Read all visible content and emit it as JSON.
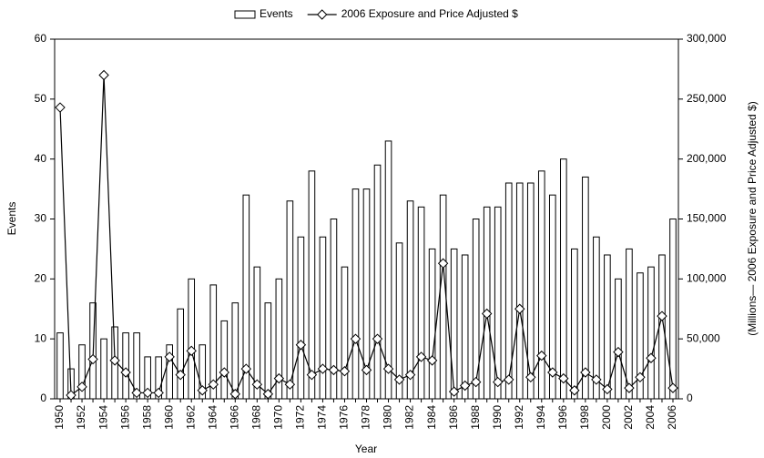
{
  "chart_data": {
    "type": "bar_line",
    "xlabel": "Year",
    "ylabel": "Events",
    "y2label": "(Millions— 2006 Exposure and Price Adjusted $)",
    "categories": [
      "1950",
      null,
      "1952",
      null,
      "1954",
      null,
      "1956",
      null,
      "1958",
      null,
      "1960",
      null,
      "1962",
      null,
      "1964",
      null,
      "1966",
      null,
      "1968",
      null,
      "1970",
      null,
      "1972",
      null,
      "1974",
      null,
      "1976",
      null,
      "1978",
      null,
      "1980",
      null,
      "1982",
      null,
      "1984",
      null,
      "1986",
      null,
      "1988",
      null,
      "1990",
      null,
      "1992",
      null,
      "1994",
      null,
      "1996",
      null,
      "1998",
      null,
      "2000",
      null,
      "2002",
      null,
      "2004",
      null,
      "2006"
    ],
    "series": [
      {
        "name": "Events",
        "type": "bar",
        "color": "#ffffff",
        "values": [
          11,
          5,
          9,
          16,
          10,
          12,
          11,
          11,
          7,
          7,
          9,
          15,
          20,
          9,
          19,
          13,
          16,
          34,
          22,
          16,
          20,
          33,
          27,
          38,
          27,
          30,
          22,
          35,
          35,
          39,
          43,
          26,
          33,
          32,
          25,
          34,
          25,
          24,
          30,
          32,
          32,
          36,
          36,
          36,
          38,
          34,
          40,
          25,
          37,
          27,
          24,
          20,
          25,
          21,
          22,
          24,
          30
        ]
      },
      {
        "name": "2006 Exposure and Price Adjusted $",
        "type": "line",
        "axis": "y2",
        "color": "#000000",
        "values": [
          243000,
          3000,
          10000,
          33000,
          270000,
          32000,
          22000,
          5000,
          5000,
          5000,
          35000,
          20000,
          40000,
          7000,
          12000,
          22000,
          4000,
          25000,
          12000,
          4000,
          17000,
          12000,
          45000,
          20000,
          25000,
          24000,
          23000,
          50000,
          24000,
          50000,
          25000,
          16000,
          20000,
          35000,
          32000,
          113000,
          6000,
          11000,
          14000,
          71000,
          14000,
          16000,
          75000,
          18000,
          36000,
          22000,
          17000,
          7000,
          22000,
          16000,
          8000,
          39000,
          9000,
          18000,
          34000,
          69000,
          9000
        ]
      }
    ],
    "ylim": [
      0,
      60
    ],
    "yticks": [
      0,
      10,
      20,
      30,
      40,
      50,
      60
    ],
    "y2lim": [
      0,
      300000
    ],
    "y2ticks": [
      0,
      {
        "value": 50000,
        "label": "50,000"
      },
      {
        "value": 100000,
        "label": "100,000"
      },
      {
        "value": 150000,
        "label": "150,000"
      },
      {
        "value": 200000,
        "label": "200,000"
      },
      {
        "value": 250000,
        "label": "250,000"
      },
      {
        "value": 300000,
        "label": "300,000"
      }
    ],
    "legend": "top"
  }
}
